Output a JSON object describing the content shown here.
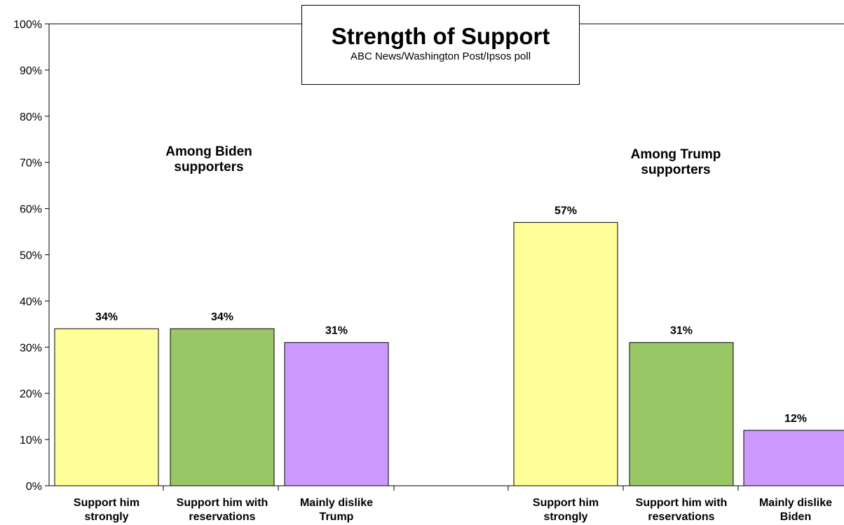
{
  "chart_data": {
    "type": "bar",
    "title": "Strength of Support",
    "subtitle": "ABC News/Washington  Post/Ipsos poll",
    "ylim": [
      0,
      100
    ],
    "yticks": [
      0,
      10,
      20,
      30,
      40,
      50,
      60,
      70,
      80,
      90,
      100
    ],
    "ytick_labels": [
      "0%",
      "10%",
      "20%",
      "30%",
      "40%",
      "50%",
      "60%",
      "70%",
      "80%",
      "90%",
      "100%"
    ],
    "groups": [
      {
        "label": "Among Biden\nsupporters",
        "bars": [
          {
            "category": "Support him\nstrongly",
            "value": 34,
            "label": "34%",
            "color": "#FFFF99"
          },
          {
            "category": "Support him with\nreservations",
            "value": 34,
            "label": "34%",
            "color": "#99C766"
          },
          {
            "category": "Mainly dislike\nTrump",
            "value": 31,
            "label": "31%",
            "color": "#CC99FF"
          }
        ]
      },
      {
        "label": "Among Trump\nsupporters",
        "bars": [
          {
            "category": "Support him\nstrongly",
            "value": 57,
            "label": "57%",
            "color": "#FFFF99"
          },
          {
            "category": "Support him with\nreservations",
            "value": 31,
            "label": "31%",
            "color": "#99C766"
          },
          {
            "category": "Mainly dislike\nBiden",
            "value": 12,
            "label": "12%",
            "color": "#CC99FF"
          }
        ]
      }
    ],
    "grid": false,
    "legend": "none"
  }
}
